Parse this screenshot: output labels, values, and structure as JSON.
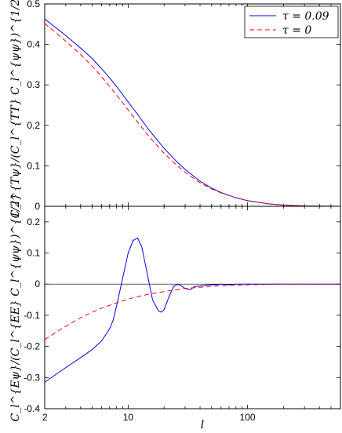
{
  "chart_data": [
    {
      "type": "line",
      "panel": "top",
      "ylabel": "C_l^{Tψ}/(C_l^{TT} C_l^{ψψ})^{1/2}",
      "xlim": [
        2,
        600
      ],
      "xscale": "log",
      "ylim": [
        0,
        0.5
      ],
      "yticks": [
        "0",
        "0.1",
        "0.2",
        "0.3",
        "0.4",
        "0.5"
      ],
      "grid": false,
      "legend": "top-right",
      "series": [
        {
          "name": "τ = 0.09",
          "color": "#0000ff",
          "dash": "solid",
          "x": [
            2,
            3,
            4,
            5,
            6,
            7,
            8,
            10,
            12,
            15,
            20,
            25,
            30,
            40,
            50,
            60,
            80,
            100,
            150,
            200,
            300,
            400,
            600
          ],
          "y": [
            0.463,
            0.422,
            0.391,
            0.365,
            0.34,
            0.317,
            0.296,
            0.258,
            0.227,
            0.188,
            0.143,
            0.113,
            0.091,
            0.062,
            0.045,
            0.034,
            0.021,
            0.014,
            0.006,
            0.003,
            0.001,
            0.0005,
            0
          ]
        },
        {
          "name": "τ = 0",
          "color": "#ff0000",
          "dash": "dashed",
          "x": [
            2,
            3,
            4,
            5,
            6,
            7,
            8,
            10,
            12,
            15,
            20,
            25,
            30,
            40,
            50,
            60,
            80,
            100,
            150,
            200,
            300,
            400,
            600
          ],
          "y": [
            0.452,
            0.408,
            0.375,
            0.346,
            0.32,
            0.296,
            0.275,
            0.238,
            0.208,
            0.172,
            0.131,
            0.104,
            0.084,
            0.058,
            0.043,
            0.033,
            0.021,
            0.014,
            0.006,
            0.003,
            0.001,
            0.0005,
            0
          ]
        }
      ]
    },
    {
      "type": "line",
      "panel": "bottom",
      "xlabel": "l",
      "ylabel": "C_l^{Eψ}/(C_l^{EE} C_l^{ψψ})^{1/2}",
      "xlim": [
        2,
        600
      ],
      "xscale": "log",
      "xticks": [
        "2",
        "10",
        "100"
      ],
      "ylim": [
        -0.4,
        0.25
      ],
      "yticks": [
        "-0.4",
        "-0.3",
        "-0.2",
        "-0.1",
        "0",
        "0.1",
        "0.2"
      ],
      "grid": false,
      "series": [
        {
          "name": "τ = 0.09",
          "color": "#0000ff",
          "dash": "solid",
          "x": [
            2,
            3,
            4,
            5,
            6,
            7,
            7.5,
            8,
            9,
            10,
            11,
            12,
            13,
            14,
            16,
            18,
            19,
            20,
            22,
            24,
            26,
            28,
            30,
            33,
            36,
            40,
            45,
            50,
            55,
            60,
            70,
            80,
            100,
            150,
            200,
            300,
            600
          ],
          "y": [
            -0.315,
            -0.268,
            -0.236,
            -0.21,
            -0.182,
            -0.143,
            -0.115,
            -0.07,
            0.02,
            0.1,
            0.14,
            0.148,
            0.12,
            0.06,
            -0.05,
            -0.087,
            -0.09,
            -0.082,
            -0.04,
            -0.008,
            0.0,
            -0.006,
            -0.014,
            -0.018,
            -0.008,
            -0.006,
            -0.003,
            -0.002,
            -0.002,
            0.0,
            -0.002,
            0.0,
            0.0,
            0.0,
            0.0,
            0.0,
            0.0
          ]
        },
        {
          "name": "τ = 0",
          "color": "#ff0000",
          "dash": "dashed",
          "x": [
            2,
            3,
            4,
            5,
            6,
            8,
            10,
            12,
            15,
            20,
            25,
            30,
            40,
            50,
            60,
            80,
            100,
            150,
            200,
            300,
            600
          ],
          "y": [
            -0.178,
            -0.135,
            -0.108,
            -0.09,
            -0.077,
            -0.06,
            -0.048,
            -0.04,
            -0.032,
            -0.024,
            -0.018,
            -0.014,
            -0.01,
            -0.007,
            -0.005,
            -0.003,
            -0.002,
            -0.001,
            0.0,
            0.0,
            0.0
          ]
        }
      ]
    }
  ]
}
